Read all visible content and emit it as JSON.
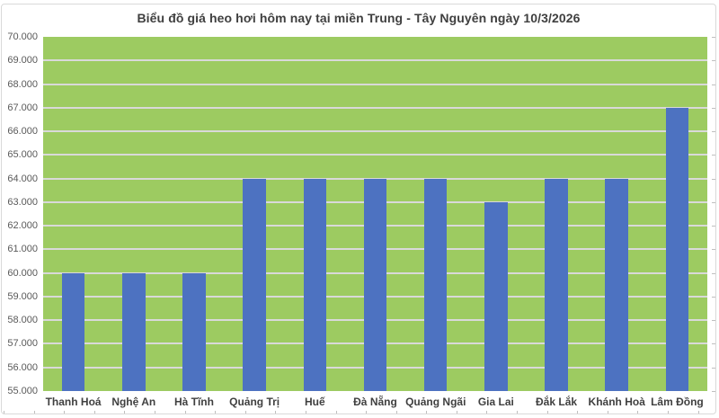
{
  "chart_data": {
    "type": "bar",
    "title": "Biểu đồ giá heo hơi hôm nay tại miền Trung - Tây Nguyên ngày 10/3/2026",
    "categories": [
      "Thanh Hoá",
      "Nghệ An",
      "Hà Tĩnh",
      "Quảng Trị",
      "Huế",
      "Đà Nẵng",
      "Quảng Ngãi",
      "Gia Lai",
      "Đắk Lắk",
      "Khánh Hoà",
      "Lâm Đồng"
    ],
    "values": [
      60000,
      60000,
      60000,
      64000,
      64000,
      64000,
      64000,
      63000,
      64000,
      64000,
      67000
    ],
    "xlabel": "",
    "ylabel": "",
    "ylim": [
      55000,
      70000
    ],
    "ytick_step": 1000,
    "ytick_label_format": "thousands-dot",
    "grid": "horizontal",
    "legend": "none",
    "colors": {
      "page_bg": "#FFFFFF",
      "frame_border": "#D9D9D9",
      "plot_bg": "#9DCB61",
      "bar": "#4D72C1",
      "gridline": "#D9D9D9",
      "title": "#3F3F3F",
      "y_label": "#595959",
      "x_label": "#404040",
      "tick": "#BFBFBF"
    }
  }
}
